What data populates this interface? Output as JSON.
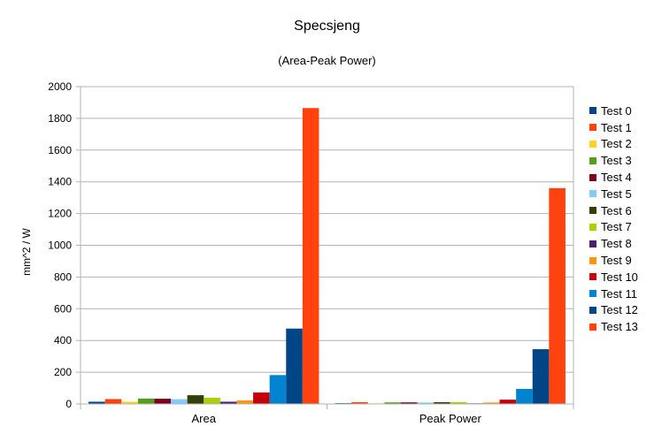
{
  "chart_data": {
    "type": "bar",
    "title": "Specsjeng",
    "subtitle": "(Area-Peak Power)",
    "xlabel": "",
    "ylabel": "mm^2 / W",
    "ylim": [
      0,
      2000
    ],
    "yticks": [
      "0",
      "200",
      "400",
      "600",
      "800",
      "1000",
      "1200",
      "1400",
      "1600",
      "1800",
      "2000"
    ],
    "grid": true,
    "legend_position": "right",
    "categories": [
      "Area",
      "Peak Power"
    ],
    "series": [
      {
        "name": "Test 0",
        "color": "#004586",
        "values": [
          14,
          5
        ]
      },
      {
        "name": "Test 1",
        "color": "#ff420e",
        "values": [
          31,
          11
        ]
      },
      {
        "name": "Test 2",
        "color": "#ffd320",
        "values": [
          14,
          4
        ]
      },
      {
        "name": "Test 3",
        "color": "#579d1c",
        "values": [
          34,
          10
        ]
      },
      {
        "name": "Test 4",
        "color": "#7e0021",
        "values": [
          33,
          10
        ]
      },
      {
        "name": "Test 5",
        "color": "#83caff",
        "values": [
          30,
          9
        ]
      },
      {
        "name": "Test 6",
        "color": "#314004",
        "values": [
          55,
          11
        ]
      },
      {
        "name": "Test 7",
        "color": "#aecf00",
        "values": [
          39,
          11
        ]
      },
      {
        "name": "Test 8",
        "color": "#4b1f6f",
        "values": [
          14,
          4
        ]
      },
      {
        "name": "Test 9",
        "color": "#ff950e",
        "values": [
          22,
          9
        ]
      },
      {
        "name": "Test 10",
        "color": "#c5000b",
        "values": [
          72,
          27
        ]
      },
      {
        "name": "Test 11",
        "color": "#0084d1",
        "values": [
          182,
          95
        ]
      },
      {
        "name": "Test 12",
        "color": "#004586",
        "values": [
          475,
          345
        ]
      },
      {
        "name": "Test 13",
        "color": "#ff420e",
        "values": [
          1865,
          1360
        ]
      }
    ]
  }
}
